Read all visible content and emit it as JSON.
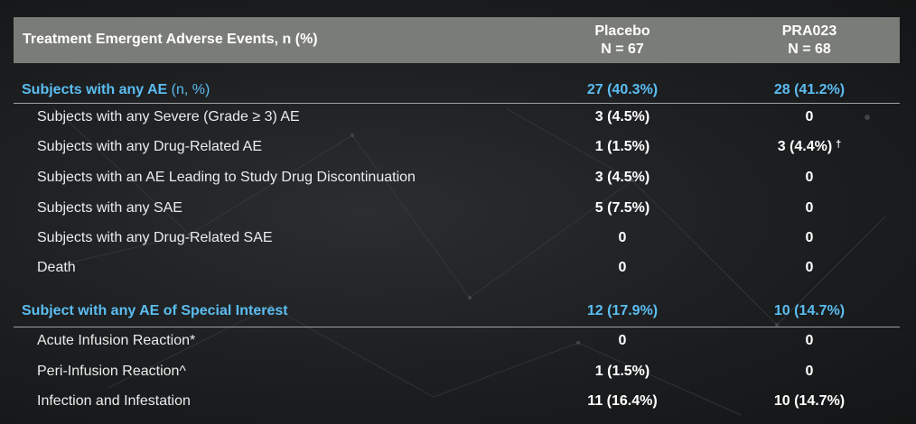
{
  "header": {
    "title": "Treatment Emergent Adverse Events, n (%)",
    "placebo_name": "Placebo",
    "placebo_n": "N = 67",
    "drug_name": "PRA023",
    "drug_n": "N = 68"
  },
  "section1": {
    "label": "Subjects with any AE",
    "label_suffix": "(n, %)",
    "placebo": "27 (40.3%)",
    "drug": "28 (41.2%)",
    "rows": [
      {
        "label": "Subjects with any Severe (Grade ≥ 3) AE",
        "placebo": "3 (4.5%)",
        "drug": "0"
      },
      {
        "label": "Subjects with any Drug-Related AE",
        "placebo": "1 (1.5%)",
        "drug": "3 (4.4%)",
        "drug_mark": "†"
      },
      {
        "label": "Subjects with an AE Leading to Study Drug Discontinuation",
        "placebo": "3 (4.5%)",
        "drug": "0"
      },
      {
        "label": "Subjects with any SAE",
        "placebo": "5 (7.5%)",
        "drug": "0"
      },
      {
        "label": "Subjects with any Drug-Related SAE",
        "placebo": "0",
        "drug": "0"
      },
      {
        "label": "Death",
        "placebo": "0",
        "drug": "0"
      }
    ]
  },
  "section2": {
    "label": "Subject with any AE of Special Interest",
    "placebo": "12 (17.9%)",
    "drug": "10 (14.7%)",
    "rows": [
      {
        "label": "Acute Infusion Reaction*",
        "placebo": "0",
        "drug": "0"
      },
      {
        "label": "Peri-Infusion Reaction^",
        "placebo": "1 (1.5%)",
        "drug": "0"
      },
      {
        "label": "Infection and Infestation",
        "placebo": "11 (16.4%)",
        "drug": "10 (14.7%)"
      }
    ]
  },
  "colors": {
    "header_bg": "#7a7c78",
    "section_text": "#5bbdf0",
    "background": "#1f2123"
  }
}
